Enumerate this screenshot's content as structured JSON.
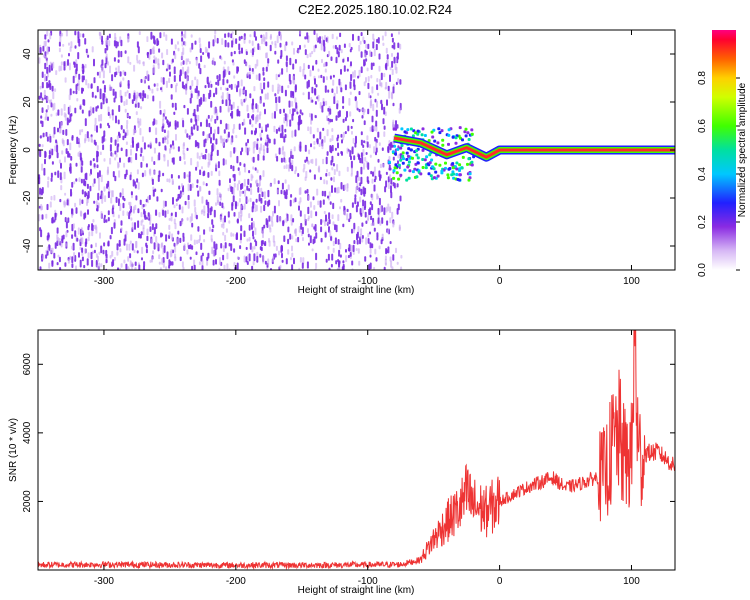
{
  "title": "C2E2.2025.180.10.02.R24",
  "colors": {
    "noise": "#7a2be2",
    "noise_light": "#c9a8f2",
    "signal_line": "#ee3333",
    "snr_line": "#ee3333",
    "axis": "#000000"
  },
  "chart_data": [
    {
      "type": "heatmap",
      "title": "",
      "xlabel": "Height of straight line (km)",
      "ylabel": "Frequency (Hz)",
      "xlim": [
        -350,
        133
      ],
      "ylim": [
        -50,
        50
      ],
      "xticks": [
        -300,
        -200,
        -100,
        0,
        100
      ],
      "yticks": [
        -40,
        -20,
        0,
        20,
        40
      ],
      "noise_region_x": [
        -350,
        -75
      ],
      "signal_track": [
        {
          "x": -80,
          "y": 5
        },
        {
          "x": -60,
          "y": 3
        },
        {
          "x": -40,
          "y": -2
        },
        {
          "x": -25,
          "y": 1
        },
        {
          "x": -10,
          "y": -3
        },
        {
          "x": 0,
          "y": 0
        },
        {
          "x": 50,
          "y": 0
        },
        {
          "x": 100,
          "y": 0
        },
        {
          "x": 133,
          "y": 0
        }
      ],
      "colorbar": {
        "label": "Normalized spectral amplitude",
        "ticks": [
          0.0,
          0.2,
          0.4,
          0.6,
          0.8
        ],
        "tick_labels": [
          "0.0",
          "0.2",
          "0.4",
          "0.6",
          "0.8"
        ],
        "range": [
          0,
          1
        ]
      }
    },
    {
      "type": "line",
      "title": "",
      "xlabel": "Height of straight line (km)",
      "ylabel": "SNR (10 * v/v)",
      "xlim": [
        -350,
        133
      ],
      "ylim": [
        0,
        7000
      ],
      "xticks": [
        -300,
        -200,
        -100,
        0,
        100
      ],
      "yticks": [
        2000,
        4000,
        6000
      ],
      "series": [
        {
          "x": [
            -350,
            -300,
            -250,
            -200,
            -150,
            -100,
            -75,
            -60,
            -50,
            -40,
            -30,
            -25,
            -20,
            -10,
            0,
            10,
            20,
            30,
            40,
            50,
            60,
            70,
            80,
            85,
            90,
            95,
            100,
            103,
            105,
            110,
            120,
            133
          ],
          "y": [
            150,
            160,
            150,
            140,
            140,
            150,
            160,
            300,
            900,
            1400,
            1800,
            2200,
            1900,
            1700,
            2000,
            2200,
            2400,
            2550,
            2700,
            2400,
            2500,
            2650,
            2800,
            3500,
            4000,
            3200,
            3300,
            7000,
            3300,
            3400,
            3450,
            3000
          ]
        }
      ]
    }
  ]
}
